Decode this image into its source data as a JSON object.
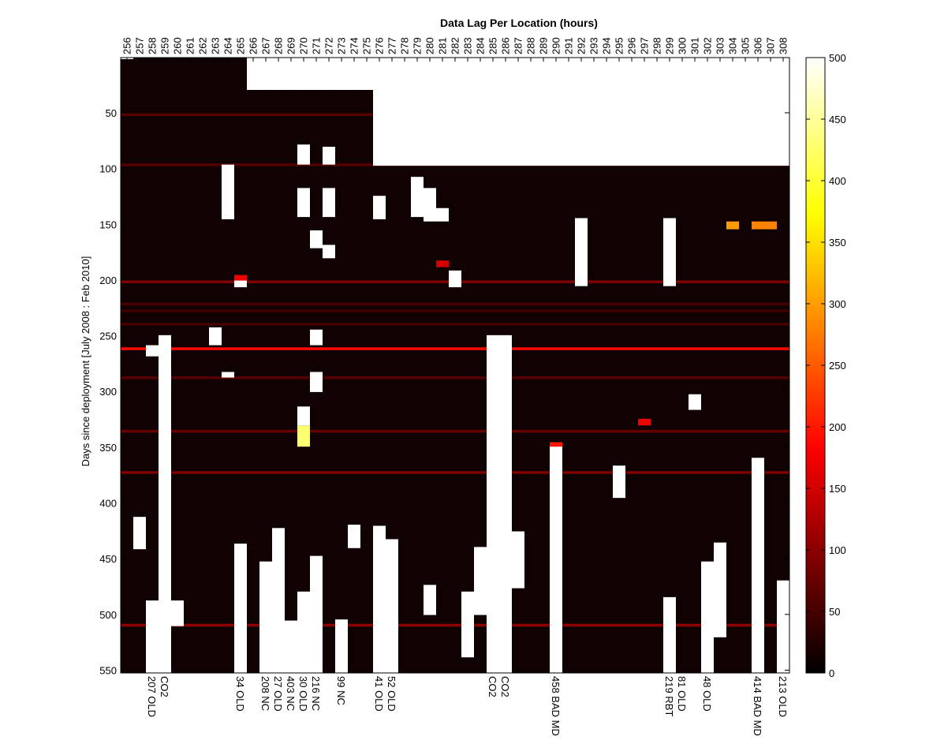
{
  "chart_data": {
    "type": "heatmap",
    "title": "Data Lag Per Location (hours)",
    "ylabel": "Days since deployment [July 2008 : Feb 2010]",
    "xlabel": "",
    "ylim": [
      1,
      552
    ],
    "y_ticks": [
      50,
      100,
      150,
      200,
      250,
      300,
      350,
      400,
      450,
      500,
      550
    ],
    "x_ticks_top": [
      "256",
      "257",
      "258",
      "259",
      "260",
      "261",
      "262",
      "263",
      "264",
      "265",
      "266",
      "267",
      "268",
      "269",
      "270",
      "271",
      "272",
      "273",
      "274",
      "275",
      "276",
      "277",
      "278",
      "279",
      "280",
      "281",
      "282",
      "283",
      "284",
      "285",
      "286",
      "287",
      "288",
      "289",
      "290",
      "291",
      "292",
      "293",
      "294",
      "295",
      "296",
      "297",
      "298",
      "299",
      "300",
      "301",
      "302",
      "303",
      "304",
      "305",
      "306",
      "307",
      "308"
    ],
    "x_labels_bottom": [
      "",
      "",
      "207 OLD",
      "CO2",
      "",
      "",
      "",
      "",
      "",
      "34 OLD",
      "",
      "208 NC",
      "27 OLD",
      "403 NC",
      "30 OLD",
      "216 NC",
      "",
      "99 NC",
      "",
      "",
      "41 OLD",
      "52 OLD",
      "",
      "",
      "",
      "",
      "",
      "",
      "",
      "CO2",
      "CO2",
      "",
      "",
      "",
      "458 BAD MD",
      "",
      "",
      "",
      "",
      "",
      "",
      "",
      "",
      "219 RBT",
      "81 OLD",
      "",
      "48 OLD",
      "",
      "",
      "",
      "414 BAD MD",
      "",
      "213 OLD"
    ],
    "colorbar": {
      "min": 0,
      "max": 500,
      "ticks": [
        0,
        50,
        100,
        150,
        200,
        250,
        300,
        350,
        400,
        450,
        500
      ],
      "colormap": "hot"
    },
    "missing_data_color": "#ffffff",
    "missing_top_days": [
      0,
      0,
      0,
      0,
      0,
      0,
      0,
      0,
      0,
      0,
      29,
      29,
      29,
      29,
      29,
      29,
      29,
      29,
      29,
      29,
      97,
      97,
      97,
      97,
      97,
      97,
      97,
      97,
      97,
      97,
      97,
      97,
      97,
      97,
      97,
      97,
      97,
      97,
      97,
      97,
      97,
      97,
      97,
      97,
      97,
      97,
      97,
      97,
      97,
      97,
      97,
      97,
      97
    ],
    "missing_top_days_note": "",
    "missing_blocks": [
      {
        "col": "256",
        "start": 1,
        "end": 1
      },
      {
        "col": "257",
        "start": 413,
        "end": 441
      },
      {
        "col": "258",
        "start": 259,
        "end": 268
      },
      {
        "col": "258",
        "start": 488,
        "end": 552
      },
      {
        "col": "259",
        "start": 250,
        "end": 552
      },
      {
        "col": "260",
        "start": 488,
        "end": 510
      },
      {
        "col": "263",
        "start": 243,
        "end": 258
      },
      {
        "col": "264",
        "start": 97,
        "end": 145
      },
      {
        "col": "264",
        "start": 283,
        "end": 287
      },
      {
        "col": "265",
        "start": 201,
        "end": 206
      },
      {
        "col": "265",
        "start": 437,
        "end": 552
      },
      {
        "col": "267",
        "start": 453,
        "end": 552
      },
      {
        "col": "268",
        "start": 423,
        "end": 552
      },
      {
        "col": "269",
        "start": 506,
        "end": 552
      },
      {
        "col": "270",
        "start": 79,
        "end": 96
      },
      {
        "col": "270",
        "start": 118,
        "end": 143
      },
      {
        "col": "270",
        "start": 314,
        "end": 330
      },
      {
        "col": "270",
        "start": 480,
        "end": 552
      },
      {
        "col": "271",
        "start": 156,
        "end": 171
      },
      {
        "col": "271",
        "start": 245,
        "end": 258
      },
      {
        "col": "271",
        "start": 283,
        "end": 300
      },
      {
        "col": "271",
        "start": 448,
        "end": 552
      },
      {
        "col": "272",
        "start": 81,
        "end": 96
      },
      {
        "col": "272",
        "start": 118,
        "end": 143
      },
      {
        "col": "272",
        "start": 169,
        "end": 180
      },
      {
        "col": "273",
        "start": 505,
        "end": 552
      },
      {
        "col": "274",
        "start": 420,
        "end": 440
      },
      {
        "col": "276",
        "start": 125,
        "end": 145
      },
      {
        "col": "276",
        "start": 421,
        "end": 552
      },
      {
        "col": "277",
        "start": 433,
        "end": 552
      },
      {
        "col": "279",
        "start": 108,
        "end": 143
      },
      {
        "col": "280",
        "start": 118,
        "end": 147
      },
      {
        "col": "280",
        "start": 474,
        "end": 500
      },
      {
        "col": "281",
        "start": 136,
        "end": 147
      },
      {
        "col": "282",
        "start": 192,
        "end": 206
      },
      {
        "col": "283",
        "start": 480,
        "end": 538
      },
      {
        "col": "284",
        "start": 440,
        "end": 500
      },
      {
        "col": "285",
        "start": 250,
        "end": 552
      },
      {
        "col": "286",
        "start": 250,
        "end": 552
      },
      {
        "col": "287",
        "start": 426,
        "end": 476
      },
      {
        "col": "290",
        "start": 350,
        "end": 552
      },
      {
        "col": "292",
        "start": 145,
        "end": 205
      },
      {
        "col": "295",
        "start": 367,
        "end": 395
      },
      {
        "col": "299",
        "start": 145,
        "end": 205
      },
      {
        "col": "299",
        "start": 485,
        "end": 552
      },
      {
        "col": "301",
        "start": 303,
        "end": 316
      },
      {
        "col": "302",
        "start": 453,
        "end": 552
      },
      {
        "col": "303",
        "start": 436,
        "end": 520
      },
      {
        "col": "306",
        "start": 360,
        "end": 552
      },
      {
        "col": "308",
        "start": 470,
        "end": 552
      }
    ],
    "hot_rows": [
      {
        "day": 52,
        "value": 60
      },
      {
        "day": 97,
        "value": 60
      },
      {
        "day": 202,
        "value": 90
      },
      {
        "day": 222,
        "value": 50
      },
      {
        "day": 228,
        "value": 45
      },
      {
        "day": 240,
        "value": 50
      },
      {
        "day": 262,
        "value": 190
      },
      {
        "day": 288,
        "value": 60
      },
      {
        "day": 336,
        "value": 75
      },
      {
        "day": 373,
        "value": 90
      },
      {
        "day": 510,
        "value": 100
      }
    ],
    "hot_spots": [
      {
        "col": "270",
        "start": 331,
        "end": 349,
        "value": 430
      },
      {
        "col": "304",
        "start": 148,
        "end": 154,
        "value": 300
      },
      {
        "col": "306",
        "start": 148,
        "end": 154,
        "value": 280
      },
      {
        "col": "307",
        "start": 148,
        "end": 154,
        "value": 280
      },
      {
        "col": "265",
        "start": 196,
        "end": 200,
        "value": 170
      },
      {
        "col": "281",
        "start": 183,
        "end": 188,
        "value": 150
      },
      {
        "col": "297",
        "start": 325,
        "end": 330,
        "value": 170
      },
      {
        "col": "290",
        "start": 346,
        "end": 350,
        "value": 200
      }
    ]
  }
}
